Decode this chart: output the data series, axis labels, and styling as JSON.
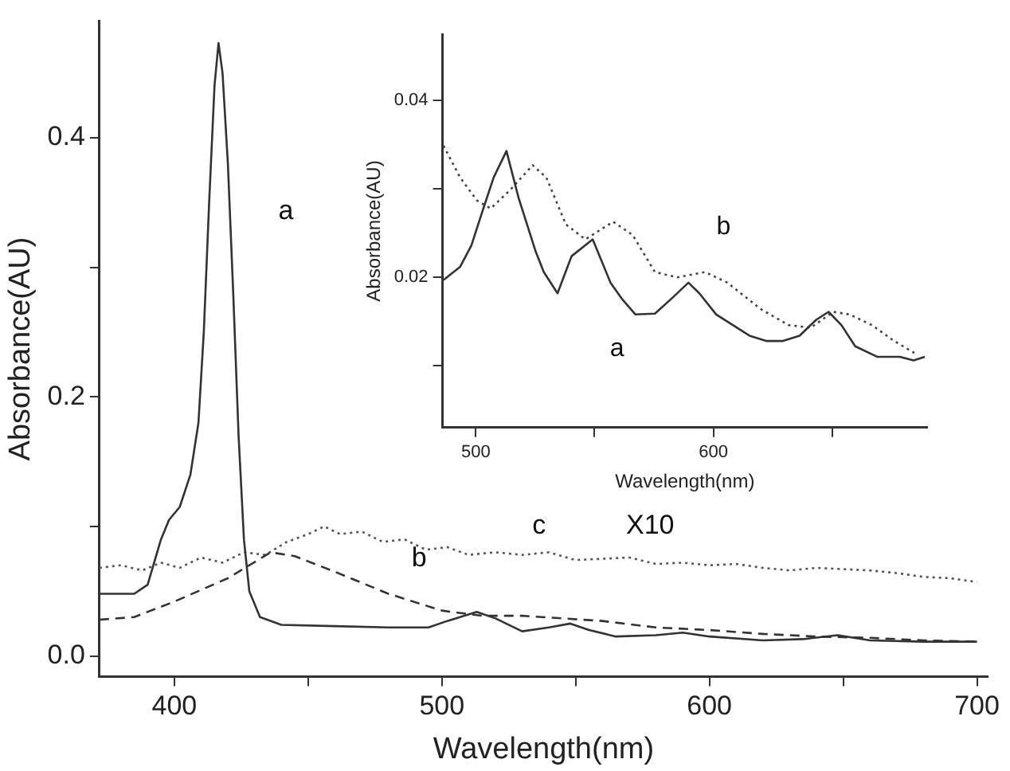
{
  "chart_data": [
    {
      "type": "line",
      "xlabel": "Wavelength(nm)",
      "ylabel": "Absorbance(AU)",
      "xlim": [
        372,
        704
      ],
      "ylim": [
        -0.016,
        0.49
      ],
      "xticks": [
        400,
        {
          "value": 450,
          "label": null
        },
        500,
        {
          "value": 550,
          "label": null
        },
        600,
        {
          "value": 650,
          "label": null
        },
        700
      ],
      "yticks": [
        {
          "value": 0,
          "label": "0.0"
        },
        {
          "value": 0.1,
          "label": null
        },
        0.2,
        {
          "value": 0.3,
          "label": null
        },
        0.4
      ],
      "series": [
        {
          "color": "#333333",
          "line_style": "solid",
          "x": [
            372,
            385,
            390,
            395,
            398,
            402,
            406,
            409,
            411,
            413,
            415,
            416.5,
            418,
            420,
            422,
            424,
            426,
            428,
            432,
            440,
            460,
            480,
            495,
            502,
            513,
            520,
            530,
            540,
            548,
            555,
            565,
            580,
            590,
            600,
            620,
            635,
            648,
            660,
            680,
            700
          ],
          "values": [
            0.048,
            0.048,
            0.055,
            0.09,
            0.105,
            0.115,
            0.14,
            0.18,
            0.25,
            0.35,
            0.44,
            0.473,
            0.45,
            0.38,
            0.28,
            0.17,
            0.09,
            0.05,
            0.03,
            0.024,
            0.023,
            0.022,
            0.022,
            0.027,
            0.034,
            0.029,
            0.019,
            0.022,
            0.025,
            0.02,
            0.015,
            0.016,
            0.018,
            0.015,
            0.012,
            0.013,
            0.016,
            0.012,
            0.011,
            0.011
          ]
        },
        {
          "color": "#333333",
          "line_style": "dashed",
          "x": [
            372,
            385,
            400,
            420,
            436,
            445,
            460,
            480,
            500,
            515,
            530,
            545,
            560,
            580,
            600,
            620,
            640,
            660,
            680,
            700
          ],
          "values": [
            0.028,
            0.03,
            0.042,
            0.06,
            0.08,
            0.077,
            0.065,
            0.048,
            0.035,
            0.031,
            0.031,
            0.029,
            0.027,
            0.022,
            0.02,
            0.017,
            0.015,
            0.014,
            0.012,
            0.011
          ]
        },
        {
          "color": "#555555",
          "line_style": "dotted",
          "x": [
            372,
            380,
            388,
            395,
            402,
            410,
            418,
            426,
            434,
            442,
            450,
            456,
            462,
            470,
            478,
            486,
            494,
            502,
            510,
            520,
            530,
            540,
            550,
            560,
            570,
            580,
            590,
            600,
            610,
            620,
            630,
            640,
            650,
            660,
            670,
            680,
            690,
            700
          ],
          "values": [
            0.068,
            0.07,
            0.066,
            0.072,
            0.068,
            0.076,
            0.072,
            0.08,
            0.078,
            0.088,
            0.094,
            0.1,
            0.094,
            0.096,
            0.088,
            0.09,
            0.082,
            0.084,
            0.078,
            0.08,
            0.078,
            0.08,
            0.074,
            0.075,
            0.076,
            0.071,
            0.072,
            0.07,
            0.071,
            0.068,
            0.066,
            0.068,
            0.067,
            0.066,
            0.064,
            0.061,
            0.06,
            0.057
          ]
        }
      ],
      "annotations": [
        "a",
        "b",
        "c",
        "X10"
      ]
    },
    {
      "type": "line",
      "xlabel": "Wavelength(nm)",
      "ylabel": "Absorbance(AU)",
      "xlim": [
        486,
        690
      ],
      "ylim": [
        0.003,
        0.0475
      ],
      "xticks": [
        500,
        {
          "value": 550,
          "label": null
        },
        600,
        {
          "value": 650,
          "label": null
        }
      ],
      "yticks": [
        {
          "value": 0.01,
          "label": null
        },
        0.02,
        {
          "value": 0.03,
          "label": null
        },
        0.04
      ],
      "series": [
        {
          "color": "#333333",
          "line_style": "solid",
          "x": [
            486.4,
            493.4,
            498.1,
            502.8,
            507.5,
            512.9,
            518,
            525.1,
            528.6,
            534.4,
            540.3,
            549.2,
            556.7,
            561.4,
            567.2,
            575.4,
            582.4,
            589.5,
            594.1,
            601.2,
            608.2,
            615.2,
            622.2,
            629.3,
            636.3,
            643.3,
            648.5,
            653.9,
            659.7,
            669.1,
            678.5,
            684.3,
            689
          ],
          "values": [
            0.0197,
            0.0212,
            0.0236,
            0.0275,
            0.0313,
            0.0343,
            0.029,
            0.023,
            0.0206,
            0.0182,
            0.0224,
            0.0243,
            0.0194,
            0.0176,
            0.0158,
            0.0159,
            0.0176,
            0.0194,
            0.0182,
            0.0158,
            0.0146,
            0.0134,
            0.0128,
            0.0128,
            0.0134,
            0.0152,
            0.0161,
            0.0146,
            0.0122,
            0.011,
            0.011,
            0.0106,
            0.011
          ]
        },
        {
          "color": "#444444",
          "line_style": "dotted",
          "x": [
            486.4,
            493.4,
            500.5,
            506.3,
            514.5,
            523.9,
            529.7,
            537.9,
            546.1,
            557.8,
            566,
            575.4,
            584.8,
            596.5,
            605.9,
            620,
            631.6,
            641,
            650.4,
            657.4,
            666.7,
            676.1,
            685.5
          ],
          "values": [
            0.0349,
            0.0313,
            0.0287,
            0.0278,
            0.0299,
            0.0327,
            0.0313,
            0.026,
            0.0243,
            0.0263,
            0.0248,
            0.0206,
            0.02,
            0.0206,
            0.0194,
            0.0164,
            0.0146,
            0.0143,
            0.0161,
            0.0158,
            0.0146,
            0.0128,
            0.0113
          ]
        }
      ],
      "annotations": [
        "b",
        "a"
      ]
    }
  ]
}
